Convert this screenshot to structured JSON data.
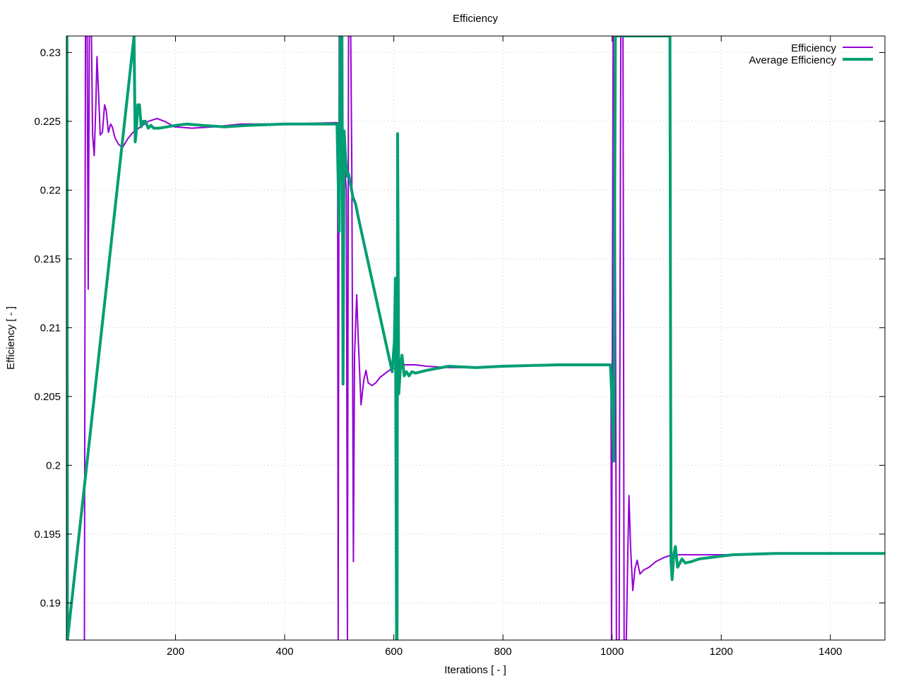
{
  "chart_data": {
    "type": "line",
    "title": "Efficiency",
    "xlabel": "Iterations [ - ]",
    "ylabel": "Efficiency [ - ]",
    "xlim": [
      0,
      1500
    ],
    "ylim": [
      0.1873,
      0.2312
    ],
    "x_ticks": [
      200,
      400,
      600,
      800,
      1000,
      1200,
      1400
    ],
    "x_tick_labels": [
      "200",
      "400",
      "600",
      "800",
      "1000",
      "1200",
      "1400"
    ],
    "y_ticks": [
      0.19,
      0.195,
      0.2,
      0.205,
      0.21,
      0.215,
      0.22,
      0.225,
      0.23
    ],
    "y_tick_labels": [
      "0.19",
      "0.195",
      "0.2",
      "0.205",
      "0.21",
      "0.215",
      "0.22",
      "0.225",
      "0.23"
    ],
    "grid": true,
    "legend_position": "top-right",
    "series": [
      {
        "name": "Efficiency",
        "color": "#9400d3",
        "width": 2,
        "points": [
          [
            33,
            0.1873
          ],
          [
            35,
            0.2312
          ],
          [
            38,
            0.2312
          ],
          [
            40,
            0.2128
          ],
          [
            42,
            0.2312
          ],
          [
            46,
            0.2312
          ],
          [
            48,
            0.224
          ],
          [
            51,
            0.2225
          ],
          [
            54,
            0.2262
          ],
          [
            56,
            0.2297
          ],
          [
            59,
            0.227
          ],
          [
            62,
            0.224
          ],
          [
            66,
            0.2242
          ],
          [
            70,
            0.2262
          ],
          [
            73,
            0.2258
          ],
          [
            77,
            0.2242
          ],
          [
            81,
            0.2248
          ],
          [
            84,
            0.2246
          ],
          [
            89,
            0.2238
          ],
          [
            96,
            0.2233
          ],
          [
            103,
            0.2231
          ],
          [
            112,
            0.2237
          ],
          [
            122,
            0.2242
          ],
          [
            136,
            0.2246
          ],
          [
            150,
            0.225
          ],
          [
            166,
            0.2252
          ],
          [
            180,
            0.225
          ],
          [
            198,
            0.2246
          ],
          [
            230,
            0.2245
          ],
          [
            270,
            0.2246
          ],
          [
            320,
            0.2248
          ],
          [
            400,
            0.2248
          ],
          [
            497,
            0.2249
          ],
          [
            498,
            0.1873
          ],
          [
            500,
            0.2312
          ],
          [
            503,
            0.2312
          ],
          [
            505,
            0.227
          ],
          [
            508,
            0.2228
          ],
          [
            513,
            0.22
          ],
          [
            515,
            0.1873
          ],
          [
            517,
            0.2312
          ],
          [
            521,
            0.2312
          ],
          [
            523,
            0.222
          ],
          [
            526,
            0.193
          ],
          [
            528,
            0.208
          ],
          [
            532,
            0.2124
          ],
          [
            535,
            0.209
          ],
          [
            540,
            0.2044
          ],
          [
            545,
            0.2062
          ],
          [
            549,
            0.2069
          ],
          [
            553,
            0.206
          ],
          [
            560,
            0.2058
          ],
          [
            567,
            0.206
          ],
          [
            575,
            0.2064
          ],
          [
            585,
            0.2067
          ],
          [
            595,
            0.207
          ],
          [
            605,
            0.2071
          ],
          [
            620,
            0.2073
          ],
          [
            640,
            0.2073
          ],
          [
            660,
            0.2072
          ],
          [
            700,
            0.2071
          ],
          [
            750,
            0.2071
          ],
          [
            800,
            0.2072
          ],
          [
            900,
            0.2073
          ],
          [
            998,
            0.2073
          ],
          [
            999,
            0.1873
          ],
          [
            1002,
            0.2312
          ],
          [
            1005,
            0.2312
          ],
          [
            1008,
            0.1873
          ],
          [
            1013,
            0.1873
          ],
          [
            1016,
            0.2312
          ],
          [
            1020,
            0.2312
          ],
          [
            1022,
            0.1873
          ],
          [
            1026,
            0.1873
          ],
          [
            1029,
            0.194
          ],
          [
            1031,
            0.1978
          ],
          [
            1034,
            0.194
          ],
          [
            1038,
            0.1909
          ],
          [
            1042,
            0.1925
          ],
          [
            1046,
            0.1931
          ],
          [
            1051,
            0.1921
          ],
          [
            1058,
            0.1924
          ],
          [
            1068,
            0.1926
          ],
          [
            1080,
            0.193
          ],
          [
            1095,
            0.1933
          ],
          [
            1110,
            0.1935
          ],
          [
            1140,
            0.1935
          ],
          [
            1170,
            0.1935
          ],
          [
            1220,
            0.1935
          ],
          [
            1300,
            0.1936
          ],
          [
            1400,
            0.1936
          ],
          [
            1500,
            0.1936
          ]
        ]
      },
      {
        "name": "Average Efficiency",
        "color": "#009e73",
        "width": 4,
        "points": [
          [
            1,
            0.2312
          ],
          [
            2,
            0.1873
          ],
          [
            124,
            0.2312
          ],
          [
            126,
            0.2235
          ],
          [
            128,
            0.2242
          ],
          [
            131,
            0.2262
          ],
          [
            134,
            0.2262
          ],
          [
            137,
            0.2246
          ],
          [
            141,
            0.225
          ],
          [
            145,
            0.225
          ],
          [
            150,
            0.2245
          ],
          [
            155,
            0.2247
          ],
          [
            160,
            0.2245
          ],
          [
            170,
            0.2245
          ],
          [
            185,
            0.2246
          ],
          [
            200,
            0.2247
          ],
          [
            220,
            0.2248
          ],
          [
            250,
            0.2247
          ],
          [
            290,
            0.2246
          ],
          [
            330,
            0.2247
          ],
          [
            400,
            0.2248
          ],
          [
            496,
            0.2248
          ],
          [
            500,
            0.217
          ],
          [
            502,
            0.2312
          ],
          [
            505,
            0.2312
          ],
          [
            507,
            0.2059
          ],
          [
            509,
            0.2243
          ],
          [
            512,
            0.222
          ],
          [
            515,
            0.221
          ],
          [
            517,
            0.2212
          ],
          [
            520,
            0.2206
          ],
          [
            525,
            0.2195
          ],
          [
            530,
            0.219
          ],
          [
            535,
            0.218
          ],
          [
            597,
            0.2068
          ],
          [
            601,
            0.209
          ],
          [
            603,
            0.2136
          ],
          [
            605,
            0.1873
          ],
          [
            606,
            0.1873
          ],
          [
            607,
            0.2241
          ],
          [
            609,
            0.2052
          ],
          [
            612,
            0.207
          ],
          [
            615,
            0.208
          ],
          [
            619,
            0.2065
          ],
          [
            623,
            0.2068
          ],
          [
            628,
            0.2065
          ],
          [
            633,
            0.2068
          ],
          [
            640,
            0.2067
          ],
          [
            660,
            0.2069
          ],
          [
            700,
            0.2072
          ],
          [
            750,
            0.2071
          ],
          [
            800,
            0.2072
          ],
          [
            900,
            0.2073
          ],
          [
            997,
            0.2073
          ],
          [
            1000,
            0.2045
          ],
          [
            1003,
            0.2003
          ],
          [
            1006,
            0.2312
          ],
          [
            1106,
            0.2312
          ],
          [
            1108,
            0.193
          ],
          [
            1110,
            0.1917
          ],
          [
            1113,
            0.1935
          ],
          [
            1116,
            0.1941
          ],
          [
            1120,
            0.1926
          ],
          [
            1123,
            0.1928
          ],
          [
            1128,
            0.1932
          ],
          [
            1134,
            0.1929
          ],
          [
            1145,
            0.193
          ],
          [
            1160,
            0.1932
          ],
          [
            1180,
            0.1933
          ],
          [
            1220,
            0.1935
          ],
          [
            1300,
            0.1936
          ],
          [
            1400,
            0.1936
          ],
          [
            1500,
            0.1936
          ]
        ]
      }
    ]
  }
}
